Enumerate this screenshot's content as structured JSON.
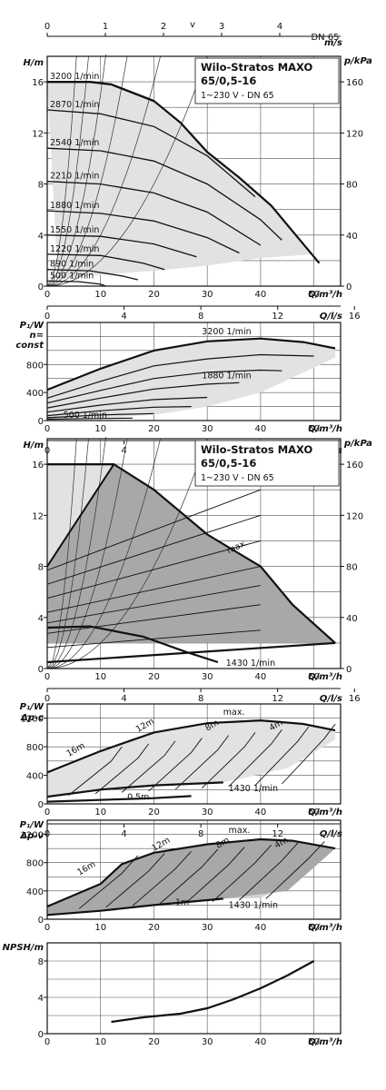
{
  "chart_data": [
    {
      "id": "c1",
      "type": "line",
      "title": "Wilo-Stratos MAXO",
      "subtitle": "65/0,5-16",
      "note": "1~230 V - DN 65",
      "ylabel": "H/m",
      "y2label": "p/kPa",
      "xlabel": "Q/m³/h",
      "x2label": "Q/l/s",
      "toplabel": "v",
      "topunit": "m/s",
      "topextra": "DN 65",
      "xlim": [
        0,
        55
      ],
      "ylim": [
        0,
        18
      ],
      "xticks": [
        "0",
        "10",
        "20",
        "30",
        "40",
        "50"
      ],
      "yticks": [
        "0",
        "4",
        "8",
        "12",
        "16"
      ],
      "y2ticks": [
        "0",
        "40",
        "80",
        "120",
        "160"
      ],
      "lsticks": [
        "0",
        "4",
        "8",
        "12",
        "16"
      ],
      "vticks": [
        "0",
        "1",
        "2",
        "3",
        "4"
      ],
      "max_curve": [
        [
          0,
          16
        ],
        [
          8,
          16
        ],
        [
          12,
          15.8
        ],
        [
          20,
          14.5
        ],
        [
          25,
          12.8
        ],
        [
          30,
          10.5
        ],
        [
          36,
          8.5
        ],
        [
          42,
          6.3
        ],
        [
          47,
          3.8
        ],
        [
          51,
          1.8
        ]
      ],
      "shaded_lower": [
        [
          2,
          0.6
        ],
        [
          10,
          0.9
        ],
        [
          20,
          1.2
        ],
        [
          30,
          1.6
        ],
        [
          40,
          2.2
        ],
        [
          50,
          2.5
        ],
        [
          51,
          1.8
        ]
      ],
      "series": [
        {
          "name": "3200 1/min",
          "points": [
            [
              0,
              16
            ],
            [
              8,
              16
            ],
            [
              12,
              15.8
            ],
            [
              20,
              14.5
            ]
          ]
        },
        {
          "name": "2870 1/min",
          "points": [
            [
              0,
              13.8
            ],
            [
              10,
              13.5
            ],
            [
              20,
              12.5
            ],
            [
              30,
              10.2
            ],
            [
              39,
              7
            ]
          ]
        },
        {
          "name": "2540 1/min",
          "points": [
            [
              0,
              10.8
            ],
            [
              10,
              10.6
            ],
            [
              20,
              9.8
            ],
            [
              30,
              8
            ],
            [
              40,
              5.2
            ],
            [
              44,
              3.6
            ]
          ]
        },
        {
          "name": "2210 1/min",
          "points": [
            [
              0,
              8.2
            ],
            [
              10,
              8
            ],
            [
              20,
              7.3
            ],
            [
              30,
              5.8
            ],
            [
              40,
              3.2
            ]
          ]
        },
        {
          "name": "1880 1/min",
          "points": [
            [
              0,
              5.9
            ],
            [
              10,
              5.7
            ],
            [
              20,
              5.1
            ],
            [
              30,
              3.8
            ],
            [
              36,
              2.6
            ]
          ]
        },
        {
          "name": "1550 1/min",
          "points": [
            [
              0,
              4
            ],
            [
              10,
              3.9
            ],
            [
              20,
              3.3
            ],
            [
              28,
              2.3
            ]
          ]
        },
        {
          "name": "1220 1/min",
          "points": [
            [
              0,
              2.5
            ],
            [
              10,
              2.4
            ],
            [
              18,
              1.8
            ],
            [
              22,
              1.3
            ]
          ]
        },
        {
          "name": "890 1/min",
          "points": [
            [
              0,
              1.3
            ],
            [
              8,
              1.2
            ],
            [
              14,
              0.8
            ],
            [
              17,
              0.5
            ]
          ]
        },
        {
          "name": "500 1/min",
          "points": [
            [
              0,
              0.4
            ],
            [
              6,
              0.35
            ],
            [
              10,
              0.15
            ],
            [
              11,
              0
            ]
          ]
        }
      ]
    },
    {
      "id": "c2",
      "type": "line",
      "ylabel": "P₁/W",
      "ylabel2": "n=",
      "ylabel3": "const",
      "xlabel": "Q/m³/h",
      "x2label": "Q/l/s",
      "xlim": [
        0,
        55
      ],
      "ylim": [
        0,
        1400
      ],
      "xticks": [
        "0",
        "10",
        "20",
        "30",
        "40",
        "50"
      ],
      "yticks": [
        "0",
        "400",
        "800"
      ],
      "lsticks": [
        "0",
        "4",
        "8",
        "12"
      ],
      "series": [
        {
          "name": "3200 1/min",
          "points": [
            [
              0,
              440
            ],
            [
              10,
              740
            ],
            [
              20,
              1000
            ],
            [
              30,
              1130
            ],
            [
              40,
              1170
            ],
            [
              48,
              1120
            ],
            [
              54,
              1030
            ]
          ]
        },
        {
          "name": "",
          "points": [
            [
              0,
              320
            ],
            [
              10,
              560
            ],
            [
              20,
              780
            ],
            [
              30,
              880
            ],
            [
              40,
              940
            ],
            [
              50,
              920
            ]
          ]
        },
        {
          "name": "",
          "points": [
            [
              0,
              250
            ],
            [
              10,
              430
            ],
            [
              20,
              600
            ],
            [
              30,
              690
            ],
            [
              40,
              720
            ],
            [
              44,
              710
            ]
          ]
        },
        {
          "name": "1880 1/min",
          "points": [
            [
              0,
              180
            ],
            [
              10,
              320
            ],
            [
              20,
              450
            ],
            [
              30,
              520
            ],
            [
              36,
              540
            ]
          ]
        },
        {
          "name": "",
          "points": [
            [
              0,
              120
            ],
            [
              10,
              220
            ],
            [
              20,
              300
            ],
            [
              30,
              330
            ]
          ]
        },
        {
          "name": "",
          "points": [
            [
              0,
              70
            ],
            [
              10,
              140
            ],
            [
              20,
              190
            ],
            [
              27,
              200
            ]
          ]
        },
        {
          "name": "",
          "points": [
            [
              0,
              40
            ],
            [
              10,
              80
            ],
            [
              20,
              100
            ]
          ]
        },
        {
          "name": "500 1/min",
          "points": [
            [
              0,
              20
            ],
            [
              10,
              30
            ],
            [
              16,
              35
            ]
          ]
        }
      ]
    },
    {
      "id": "c3",
      "type": "line",
      "title": "Wilo-Stratos MAXO",
      "subtitle": "65/0,5-16",
      "note": "1~230 V - DN 65",
      "ylabel": "H/m",
      "y2label": "p/kPa",
      "xlabel": "Q/m³/h",
      "x2label": "Q/l/s",
      "xlim": [
        0,
        55
      ],
      "ylim": [
        0,
        18
      ],
      "xticks": [
        "0",
        "10",
        "20",
        "30",
        "40",
        "50"
      ],
      "yticks": [
        "0",
        "4",
        "8",
        "12",
        "16"
      ],
      "y2ticks": [
        "0",
        "40",
        "80",
        "120",
        "160"
      ],
      "lsticks": [
        "0",
        "4",
        "8",
        "12",
        "16"
      ],
      "max_label": "max.",
      "min_label": "1430 1/min",
      "max_curve": [
        [
          0,
          16
        ],
        [
          12.5,
          16
        ],
        [
          20,
          14
        ],
        [
          30,
          10.5
        ],
        [
          40,
          8
        ],
        [
          46,
          5
        ],
        [
          54,
          2
        ]
      ],
      "dark_region": [
        [
          0,
          8
        ],
        [
          12.5,
          16
        ],
        [
          20,
          14
        ],
        [
          30,
          10.5
        ],
        [
          40,
          8
        ],
        [
          46,
          5
        ],
        [
          54,
          2
        ],
        [
          0,
          2
        ]
      ],
      "light_region": [
        [
          0,
          16
        ],
        [
          12.5,
          16
        ],
        [
          0,
          8
        ]
      ],
      "min_curve": [
        [
          0,
          3.2
        ],
        [
          8,
          3.3
        ],
        [
          18,
          2.5
        ],
        [
          26,
          1.3
        ],
        [
          32,
          0.5
        ]
      ],
      "bottom_line": [
        [
          0,
          0.5
        ],
        [
          54,
          2
        ]
      ]
    },
    {
      "id": "c4",
      "type": "line",
      "ylabel": "P₁/W",
      "ylabel2": "Δp-c",
      "xlabel": "Q/m³/h",
      "x2label": "Q/l/s",
      "xlim": [
        0,
        55
      ],
      "ylim": [
        0,
        1400
      ],
      "xticks": [
        "0",
        "10",
        "20",
        "30",
        "40",
        "50"
      ],
      "yticks": [
        "0",
        "400",
        "800",
        "1200"
      ],
      "lsticks": [
        "0",
        "4",
        "8",
        "12"
      ],
      "max_label": "max.",
      "min_label": "1430 1/min",
      "labels": [
        "16m",
        "12m",
        "8m",
        "4m",
        "0.5m"
      ],
      "max_curve": [
        [
          0,
          440
        ],
        [
          10,
          740
        ],
        [
          20,
          1000
        ],
        [
          30,
          1130
        ],
        [
          40,
          1170
        ],
        [
          48,
          1120
        ],
        [
          54,
          1030
        ]
      ],
      "min_curve": [
        [
          0,
          100
        ],
        [
          10,
          200
        ],
        [
          20,
          260
        ],
        [
          33,
          300
        ]
      ],
      "low_line": [
        [
          0,
          30
        ],
        [
          20,
          80
        ],
        [
          27,
          110
        ]
      ]
    },
    {
      "id": "c5",
      "type": "line",
      "ylabel": "P₁/W",
      "ylabel2": "Δp-v",
      "xlabel": "Q/m³/h",
      "x2label": "Q/l/s",
      "xlim": [
        0,
        55
      ],
      "ylim": [
        0,
        1400
      ],
      "xticks": [
        "0",
        "10",
        "20",
        "30",
        "40",
        "50"
      ],
      "yticks": [
        "0",
        "400",
        "800",
        "1200"
      ],
      "max_label": "max.",
      "min_label": "1430 1/min",
      "labels": [
        "16m",
        "12m",
        "8m",
        "4m",
        "1m"
      ],
      "max_curve": [
        [
          0,
          180
        ],
        [
          10,
          500
        ],
        [
          14,
          780
        ],
        [
          20,
          940
        ],
        [
          30,
          1060
        ],
        [
          40,
          1130
        ],
        [
          46,
          1110
        ],
        [
          54,
          1000
        ]
      ],
      "min_curve": [
        [
          0,
          60
        ],
        [
          10,
          120
        ],
        [
          20,
          200
        ],
        [
          33,
          290
        ]
      ]
    },
    {
      "id": "c6",
      "type": "line",
      "ylabel": "NPSH/m",
      "xlabel": "Q/m³/h",
      "xlim": [
        0,
        55
      ],
      "ylim": [
        0,
        10
      ],
      "xticks": [
        "0",
        "10",
        "20",
        "30",
        "40",
        "50"
      ],
      "yticks": [
        "0",
        "4",
        "8"
      ],
      "series": [
        {
          "name": "",
          "points": [
            [
              12,
              1.3
            ],
            [
              18,
              1.8
            ],
            [
              25,
              2.2
            ],
            [
              30,
              2.8
            ],
            [
              35,
              3.8
            ],
            [
              40,
              5
            ],
            [
              45,
              6.4
            ],
            [
              50,
              8
            ]
          ]
        }
      ]
    }
  ]
}
